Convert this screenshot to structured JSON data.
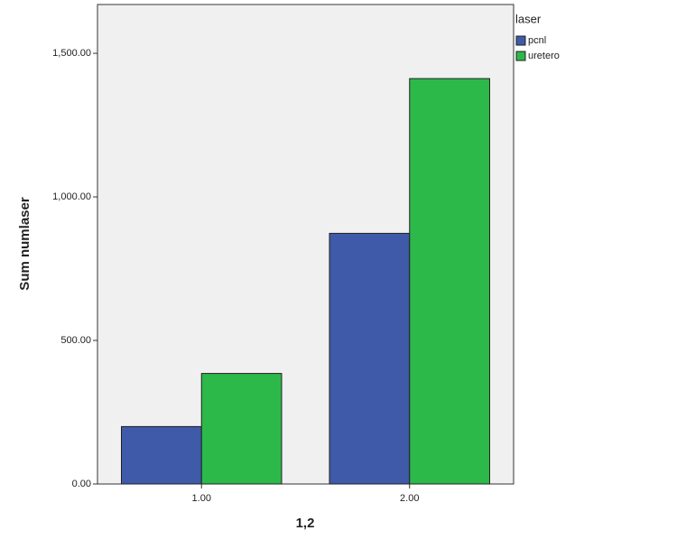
{
  "chart_data": {
    "type": "bar",
    "x_label": "1,2",
    "y_label": "Sum numlaser",
    "legend_title": "laser",
    "categories": [
      "1.00",
      "2.00"
    ],
    "series": [
      {
        "name": "pcnl",
        "color": "#3f5aa9",
        "values": [
          200,
          873
        ]
      },
      {
        "name": "uretero",
        "color": "#2db84a",
        "values": [
          385,
          1412
        ]
      }
    ],
    "ylim": [
      0,
      1670
    ],
    "yticks": [
      {
        "value": 0,
        "label": "0.00"
      },
      {
        "value": 500,
        "label": "500.00"
      },
      {
        "value": 1000,
        "label": "1,000.00"
      },
      {
        "value": 1500,
        "label": "1,500.00"
      }
    ],
    "legend": "top-right"
  }
}
